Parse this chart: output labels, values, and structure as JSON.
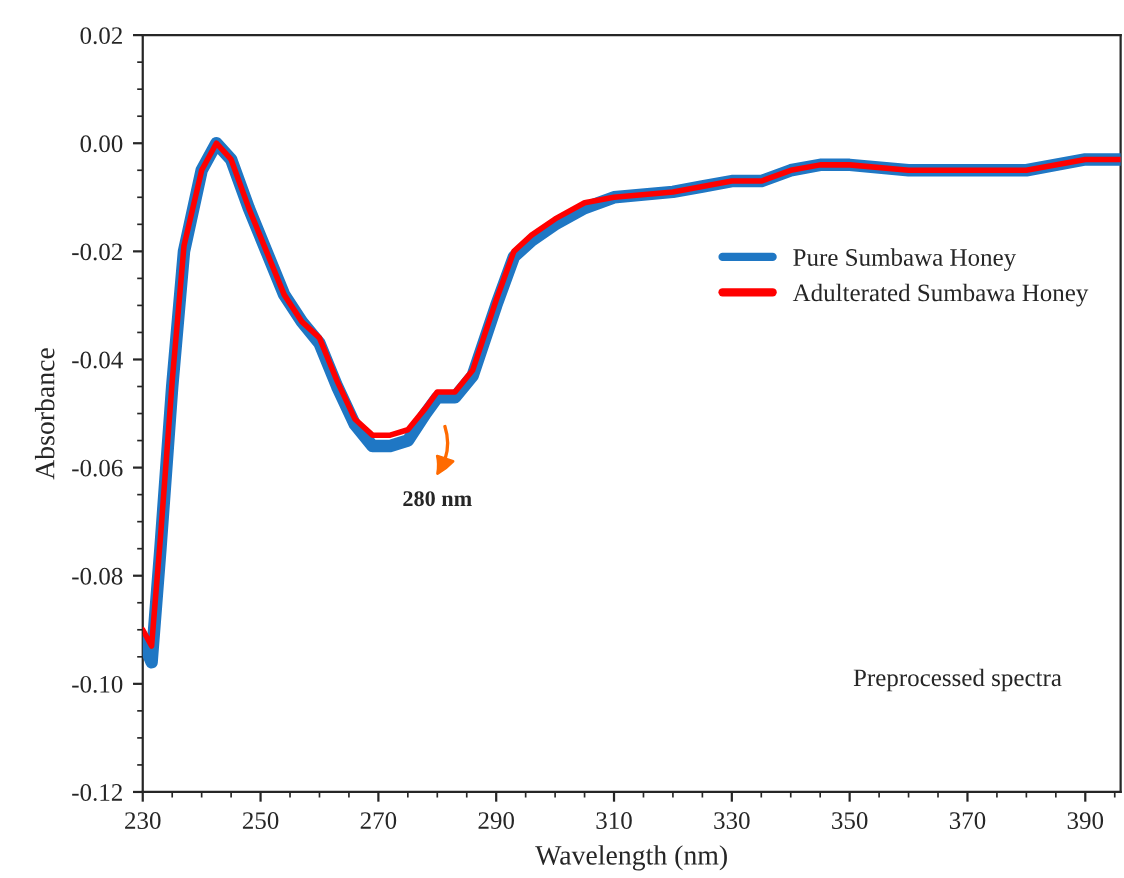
{
  "chart_data": {
    "type": "line",
    "xlabel": "Wavelength (nm)",
    "ylabel": "Absorbance",
    "x": [
      230,
      231.5,
      233,
      235,
      237,
      240,
      242.5,
      245,
      248,
      251,
      254,
      257,
      260,
      263,
      266,
      269,
      272,
      275,
      278,
      280,
      283,
      286,
      290,
      293,
      296,
      300,
      305,
      310,
      320,
      325,
      330,
      335,
      340,
      345,
      350,
      360,
      370,
      380,
      390,
      396
    ],
    "series": [
      {
        "name": "Pure Sumbawa Honey",
        "color": "#1f77c4",
        "values": [
          -0.092,
          -0.096,
          -0.075,
          -0.045,
          -0.02,
          -0.005,
          0.0,
          -0.003,
          -0.012,
          -0.02,
          -0.028,
          -0.033,
          -0.037,
          -0.045,
          -0.052,
          -0.056,
          -0.056,
          -0.055,
          -0.05,
          -0.047,
          -0.047,
          -0.043,
          -0.03,
          -0.021,
          -0.018,
          -0.015,
          -0.012,
          -0.01,
          -0.009,
          -0.008,
          -0.007,
          -0.007,
          -0.005,
          -0.004,
          -0.004,
          -0.005,
          -0.005,
          -0.005,
          -0.003,
          -0.003
        ]
      },
      {
        "name": "Adulterated Sumbawa Honey",
        "color": "#ff0000",
        "values": [
          -0.09,
          -0.093,
          -0.073,
          -0.044,
          -0.019,
          -0.005,
          0.0,
          -0.003,
          -0.012,
          -0.02,
          -0.028,
          -0.033,
          -0.036,
          -0.044,
          -0.051,
          -0.054,
          -0.054,
          -0.053,
          -0.049,
          -0.046,
          -0.046,
          -0.042,
          -0.029,
          -0.02,
          -0.017,
          -0.014,
          -0.011,
          -0.01,
          -0.009,
          -0.008,
          -0.007,
          -0.007,
          -0.005,
          -0.004,
          -0.004,
          -0.005,
          -0.005,
          -0.005,
          -0.003,
          -0.003
        ]
      }
    ],
    "xlim": [
      230,
      396
    ],
    "xticks": [
      230,
      250,
      270,
      290,
      310,
      330,
      350,
      370,
      390
    ],
    "ylim": [
      -0.12,
      0.02
    ],
    "yticks": [
      {
        "value": -0.12,
        "label": "-0.12"
      },
      {
        "value": -0.1,
        "label": "-0.10"
      },
      {
        "value": -0.08,
        "label": "-0.08"
      },
      {
        "value": -0.06,
        "label": "-0.06"
      },
      {
        "value": -0.04,
        "label": "-0.04"
      },
      {
        "value": -0.02,
        "label": "-0.02"
      },
      {
        "value": 0.0,
        "label": "0.00"
      },
      {
        "value": 0.02,
        "label": "0.02"
      }
    ],
    "annotations": [
      "280 nm",
      "Preprocessed spectra"
    ],
    "legend": "right",
    "grid": false,
    "marker": "none",
    "line_style": "solid"
  }
}
